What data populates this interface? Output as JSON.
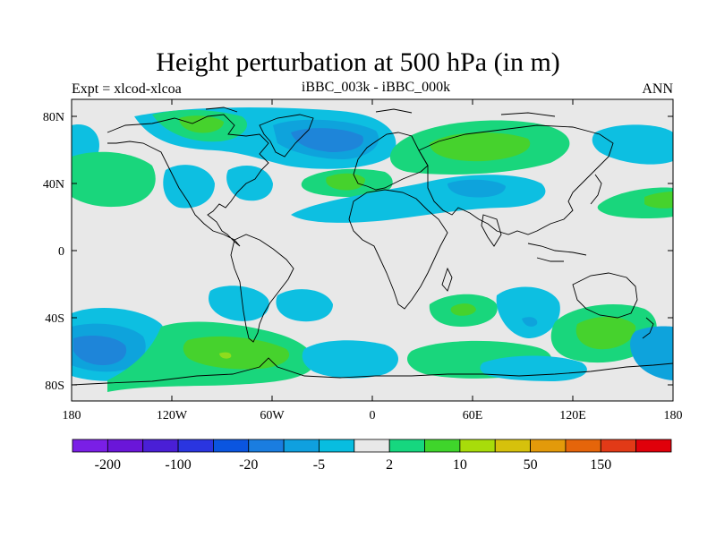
{
  "header": {
    "title": "Height perturbation at 500 hPa (in m)",
    "expt_label": "Expt = xlcod-xlcoa",
    "experiment_diff": "iBBC_003k - iBBC_000k",
    "period": "ANN"
  },
  "map_axes": {
    "lat_ticks": [
      "80N",
      "40N",
      "0",
      "40S",
      "80S"
    ],
    "lon_ticks": [
      "180",
      "120W",
      "60W",
      "0",
      "60E",
      "120E",
      "180"
    ]
  },
  "colorbar": {
    "colors": [
      "#7a1fe6",
      "#6a16d9",
      "#4a1fd6",
      "#2a35e0",
      "#0a55e0",
      "#1a7de0",
      "#0fa0df",
      "#08bde0",
      "#e8e8e8",
      "#16d77f",
      "#3fd52b",
      "#a8dc0a",
      "#d6c10c",
      "#e39a0a",
      "#e5650a",
      "#e23a17",
      "#e0000a"
    ],
    "tick_labels": [
      "-200",
      "-100",
      "-20",
      "-5",
      "2",
      "10",
      "50",
      "150"
    ]
  },
  "colors": {
    "background": "#e8e8e8",
    "green_light": "#19d67c",
    "green_mid": "#46d22d",
    "green_lime": "#8fdc1d",
    "cyan": "#0dbfe1",
    "blue_light": "#0ea3dc",
    "blue_mid": "#1e85d9",
    "blue_dark": "#0f60d6"
  }
}
